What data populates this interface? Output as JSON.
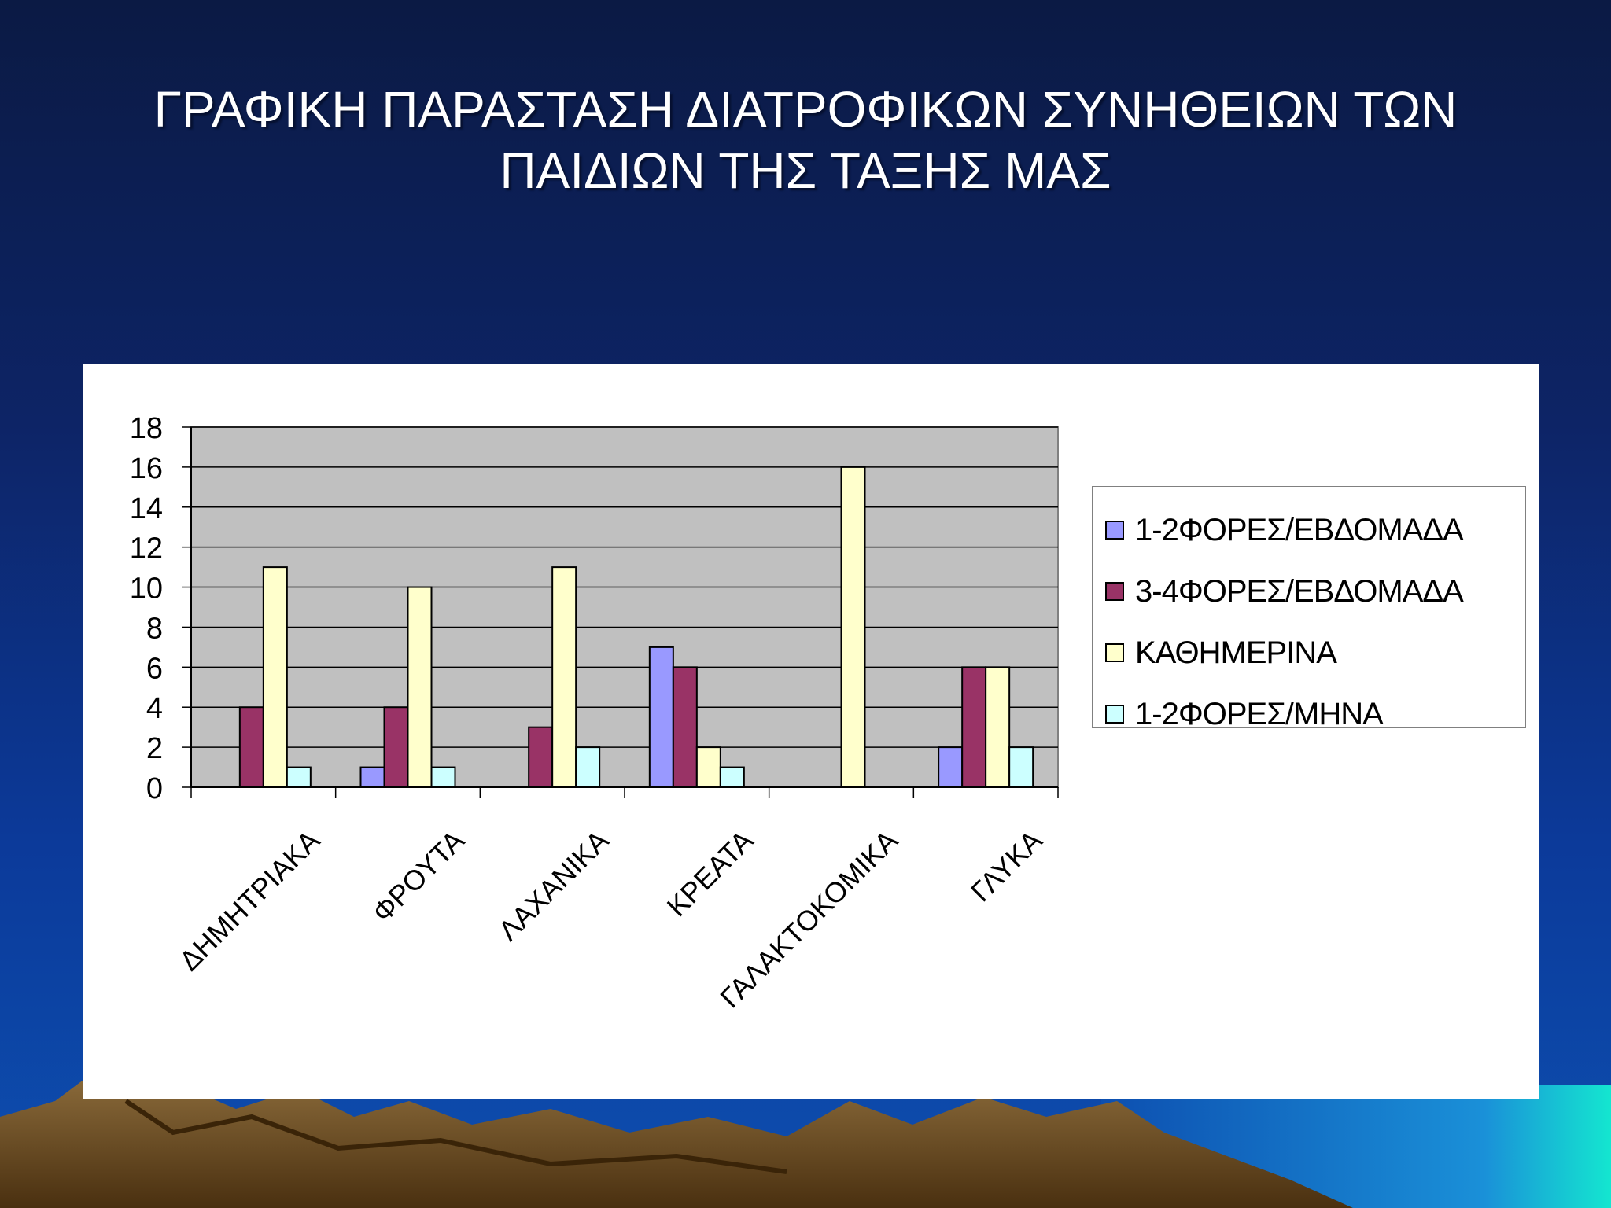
{
  "slide": {
    "title_line1": "ΓΡΑΦΙΚΗ ΠΑΡΑΣΤΑΣΗ ΔΙΑΤΡΟΦΙΚΩΝ ΣΥΝΗΘΕΙΩΝ ΤΩΝ",
    "title_line2": "ΠΑΙΔΙΩΝ ΤΗΣ ΤΑΞΗΣ ΜΑΣ"
  },
  "chart_data": {
    "type": "bar",
    "categories": [
      "ΔΗΜΗΤΡΙΑΚΑ",
      "ΦΡΟΥΤΑ",
      "ΛΑΧΑΝΙΚΑ",
      "ΚΡΕΑΤΑ",
      "ΓΑΛΑΚΤΟΚΟΜΙΚΑ",
      "ΓΛΥΚΑ"
    ],
    "series": [
      {
        "name": "1-2ΦΟΡΕΣ/ΕΒΔΟΜΑΔΑ",
        "color": "#9999ff",
        "values": [
          0,
          1,
          0,
          7,
          0,
          2
        ]
      },
      {
        "name": "3-4ΦΟΡΕΣ/ΕΒΔΟΜΑΔΑ",
        "color": "#993366",
        "values": [
          4,
          4,
          3,
          6,
          0,
          6
        ]
      },
      {
        "name": "ΚΑΘΗΜΕΡΙΝΑ",
        "color": "#ffffcc",
        "values": [
          11,
          10,
          11,
          2,
          16,
          6
        ]
      },
      {
        "name": "1-2ΦΟΡΕΣ/ΜΗΝΑ",
        "color": "#ccffff",
        "values": [
          1,
          1,
          2,
          1,
          0,
          2
        ]
      }
    ],
    "ylim": [
      0,
      18
    ],
    "yticks": [
      0,
      2,
      4,
      6,
      8,
      10,
      12,
      14,
      16,
      18
    ],
    "plot_background": "#c0c0c0",
    "grid": true,
    "legend_position": "right"
  }
}
